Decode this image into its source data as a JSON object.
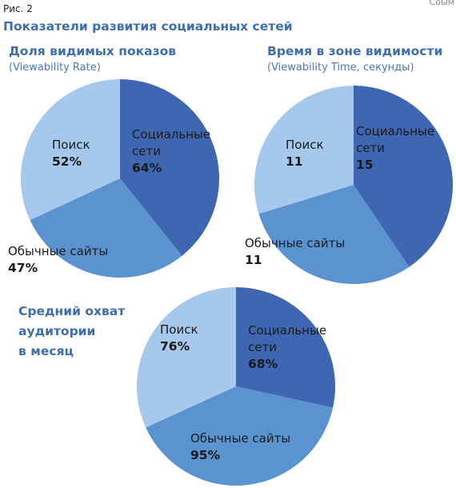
{
  "figure_label": "Рис. 2",
  "corner_text": "Cоым",
  "main_title": "Показатели развития социальных сетей",
  "chart_data": [
    {
      "type": "pie",
      "title": "Доля видимых показов",
      "subtitle": "(Viewability Rate)",
      "slices": [
        {
          "label": [
            "Социальные",
            "сети"
          ],
          "display": "64%",
          "value": 64,
          "color": "#3f66b0"
        },
        {
          "label": [
            "Обычные сайты"
          ],
          "display": "47%",
          "value": 47,
          "color": "#5b93d1"
        },
        {
          "label": [
            "Поиск"
          ],
          "display": "52%",
          "value": 52,
          "color": "#a5c8ec"
        }
      ]
    },
    {
      "type": "pie",
      "title": "Время в зоне видимости",
      "subtitle": "(Viewability Time, секунды)",
      "slices": [
        {
          "label": [
            "Социальные",
            "сети"
          ],
          "display": "15",
          "value": 15,
          "color": "#3f66b0"
        },
        {
          "label": [
            "Обычные сайты"
          ],
          "display": "11",
          "value": 11,
          "color": "#5b93d1"
        },
        {
          "label": [
            "Поиск"
          ],
          "display": "11",
          "value": 11,
          "color": "#a5c8ec"
        }
      ]
    },
    {
      "type": "pie",
      "title": [
        "Средний охват",
        "аудитории",
        "в месяц"
      ],
      "slices": [
        {
          "label": [
            "Социальные",
            "сети"
          ],
          "display": "68%",
          "value": 68,
          "color": "#3f66b0"
        },
        {
          "label": [
            "Обычные сайты"
          ],
          "display": "95%",
          "value": 95,
          "color": "#5b93d1"
        },
        {
          "label": [
            "Поиск"
          ],
          "display": "76%",
          "value": 76,
          "color": "#a5c8ec"
        }
      ]
    }
  ]
}
